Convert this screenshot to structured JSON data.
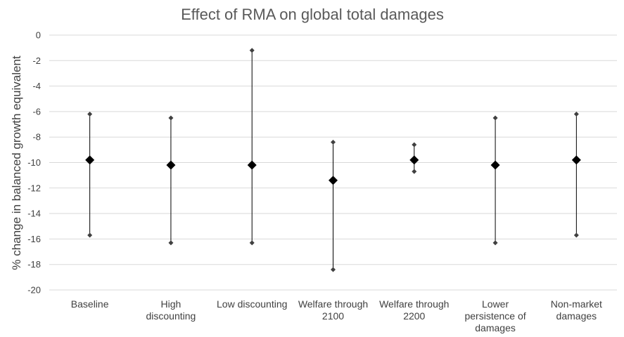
{
  "chart_data": {
    "type": "scatter",
    "title": "Effect of RMA on global total damages",
    "xlabel": "",
    "ylabel": "% change in balanced growth equivalent",
    "ylim": [
      -20,
      0
    ],
    "yticks": [
      0,
      -2,
      -4,
      -6,
      -8,
      -10,
      -12,
      -14,
      -16,
      -18,
      -20
    ],
    "grid": true,
    "legend": "none",
    "categories": [
      [
        "Baseline"
      ],
      [
        "High",
        "discounting"
      ],
      [
        "Low discounting"
      ],
      [
        "Welfare through",
        "2100"
      ],
      [
        "Welfare through",
        "2200"
      ],
      [
        "Lower",
        "persistence of",
        "damages"
      ],
      [
        "Non-market",
        "damages"
      ]
    ],
    "series": [
      {
        "role": "central",
        "values": [
          -9.8,
          -10.2,
          -10.2,
          -11.4,
          -9.8,
          -10.2,
          -9.8
        ]
      },
      {
        "role": "upper",
        "values": [
          -6.2,
          -6.5,
          -1.2,
          -8.4,
          -8.6,
          -6.5,
          -6.2
        ]
      },
      {
        "role": "lower",
        "values": [
          -15.7,
          -16.3,
          -16.3,
          -18.4,
          -10.7,
          -16.3,
          -15.7
        ]
      }
    ],
    "colors": {
      "marker": "#000000",
      "bound_marker": "#404040",
      "grid": "#d9d9d9",
      "text": "#404040",
      "title": "#595959"
    }
  }
}
